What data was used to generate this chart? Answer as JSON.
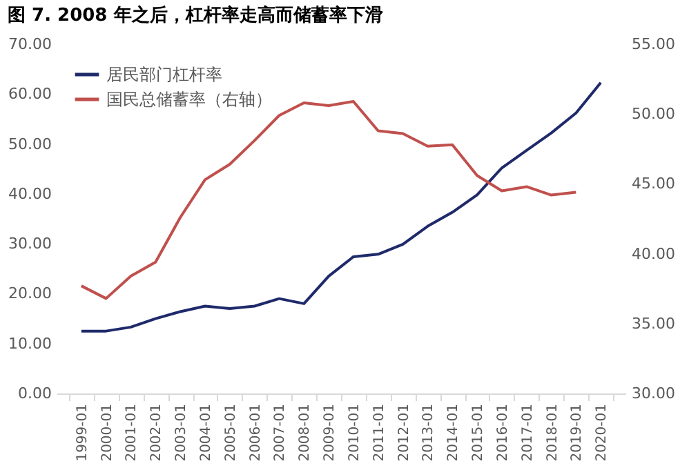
{
  "chart_data": {
    "type": "line",
    "title": "图 7. 2008 年之后，杠杆率走高而储蓄率下滑",
    "categories": [
      "1999-01",
      "2000-01",
      "2001-01",
      "2002-01",
      "2003-01",
      "2004-01",
      "2005-01",
      "2006-01",
      "2007-01",
      "2008-01",
      "2009-01",
      "2010-01",
      "2011-01",
      "2012-01",
      "2013-01",
      "2014-01",
      "2015-01",
      "2016-01",
      "2017-01",
      "2018-01",
      "2019-01",
      "2020-01"
    ],
    "series": [
      {
        "name": "居民部门杠杆率",
        "color": "#1f2a6b",
        "values": [
          12.5,
          12.5,
          13.3,
          15.0,
          16.4,
          17.5,
          17.0,
          17.5,
          19.0,
          18.0,
          23.5,
          27.4,
          27.9,
          29.9,
          33.5,
          36.3,
          39.8,
          45.2,
          48.7,
          52.2,
          56.2,
          62.3
        ]
      },
      {
        "name": "国民总储蓄率（右轴）",
        "color": "#c0504d",
        "axis": "y2",
        "values": [
          37.7,
          36.8,
          38.4,
          39.4,
          42.6,
          45.3,
          46.4,
          48.1,
          49.9,
          50.8,
          50.6,
          50.9,
          48.8,
          48.6,
          47.7,
          47.8,
          45.6,
          44.5,
          44.8,
          44.2,
          44.4,
          null
        ]
      }
    ],
    "ylim": [
      0,
      70
    ],
    "yticks": [
      {
        "value": 0,
        "label": "0.00"
      },
      {
        "value": 10,
        "label": "10.00"
      },
      {
        "value": 20,
        "label": "20.00"
      },
      {
        "value": 30,
        "label": "30.00"
      },
      {
        "value": 40,
        "label": "40.00"
      },
      {
        "value": 50,
        "label": "50.00"
      },
      {
        "value": 60,
        "label": "60.00"
      },
      {
        "value": 70,
        "label": "70.00"
      }
    ],
    "y2lim": [
      30,
      55
    ],
    "y2ticks": [
      {
        "value": 30,
        "label": "30.00"
      },
      {
        "value": 35,
        "label": "35.00"
      },
      {
        "value": 40,
        "label": "40.00"
      },
      {
        "value": 45,
        "label": "45.00"
      },
      {
        "value": 50,
        "label": "50.00"
      },
      {
        "value": 55,
        "label": "55.00"
      }
    ],
    "legend": "top left",
    "grid": false,
    "marker": "none",
    "line_style": "solid"
  }
}
